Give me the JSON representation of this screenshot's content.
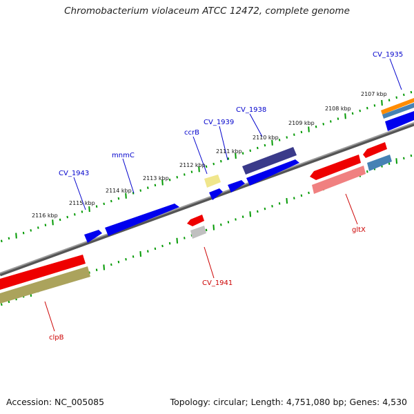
{
  "title": "Chromobacterium violaceum ATCC 12472, complete genome",
  "footer": {
    "accession": "Accession: NC_005085",
    "summary": "Topology: circular; Length: 4,751,080 bp; Genes: 4,530"
  },
  "ticks": [
    {
      "label": "2107 kbp"
    },
    {
      "label": "2108 kbp"
    },
    {
      "label": "2109 kbp"
    },
    {
      "label": "2110 kbp"
    },
    {
      "label": "2111 kbp"
    },
    {
      "label": "2112 kbp"
    },
    {
      "label": "2113 kbp"
    },
    {
      "label": "2114 kbp"
    },
    {
      "label": "2115 kbp"
    },
    {
      "label": "2116 kbp"
    }
  ],
  "gene_labels": [
    {
      "name": "CV_1935",
      "color": "#0000cc"
    },
    {
      "name": "CV_1938",
      "color": "#0000cc"
    },
    {
      "name": "CV_1939",
      "color": "#0000cc"
    },
    {
      "name": "ccrB",
      "color": "#0000cc"
    },
    {
      "name": "mnmC",
      "color": "#0000cc"
    },
    {
      "name": "CV_1943",
      "color": "#0000cc"
    },
    {
      "name": "gltX",
      "color": "#cc0000"
    },
    {
      "name": "CV_1941",
      "color": "#cc0000"
    },
    {
      "name": "clpB",
      "color": "#cc0000"
    }
  ],
  "colors": {
    "backbone": "#808080",
    "forward_gene": "#0000ee",
    "reverse_gene": "#ee0000",
    "tick": "#009900"
  }
}
